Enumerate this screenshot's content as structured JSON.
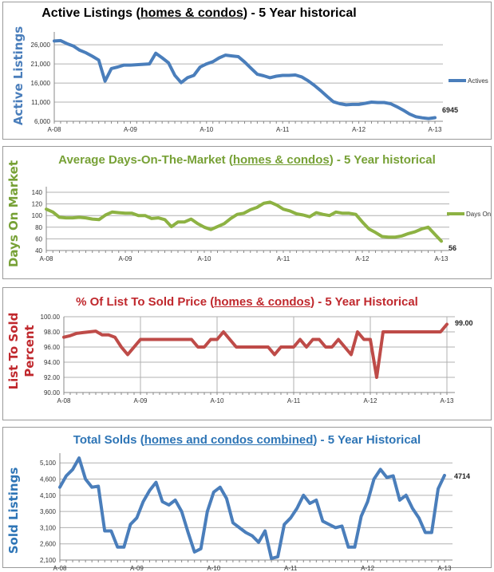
{
  "chart_data": [
    {
      "type": "line",
      "title": {
        "prefix": "Active Listings (",
        "underlined": "homes & condos",
        "suffix": ") - 5 Year historical"
      },
      "ylabel": [
        "Active Listings"
      ],
      "xticks": [
        "A-08",
        "A-09",
        "A-10",
        "A-11",
        "A-12",
        "A-13"
      ],
      "yticks": [
        "6,000",
        "11,000",
        "16,000",
        "21,000",
        "26,000"
      ],
      "ytick_values": [
        6000,
        11000,
        16000,
        21000,
        26000
      ],
      "ylim": [
        6000,
        30000
      ],
      "grid": "horizontal",
      "legend": "right",
      "color": "#4a7ebb",
      "title_color": "#000000",
      "end_label": "6945",
      "series": [
        {
          "name": "Actives",
          "values": [
            27000,
            27100,
            26300,
            25700,
            24600,
            23900,
            23000,
            22000,
            16500,
            19800,
            20200,
            20700,
            20700,
            20800,
            20900,
            21000,
            23800,
            22600,
            21300,
            18000,
            16100,
            17400,
            18000,
            20200,
            21000,
            21600,
            22600,
            23300,
            23100,
            22900,
            21500,
            19900,
            18300,
            17900,
            17400,
            17800,
            18000,
            18000,
            18100,
            17600,
            16600,
            15400,
            14000,
            12500,
            11100,
            10600,
            10300,
            10400,
            10400,
            10700,
            11000,
            10900,
            10900,
            10600,
            9800,
            8900,
            7900,
            7200,
            6900,
            6700,
            6945
          ]
        }
      ]
    },
    {
      "type": "line",
      "title": {
        "prefix": "Average Days-On-The-Market (",
        "underlined": "homes & condos",
        "suffix": ") - 5 Year historical"
      },
      "ylabel": [
        "Days On Market"
      ],
      "xticks": [
        "A-08",
        "A-09",
        "A-10",
        "A-11",
        "A-12",
        "A-13"
      ],
      "yticks": [
        "40",
        "60",
        "80",
        "100",
        "120",
        "140"
      ],
      "ytick_values": [
        40,
        60,
        80,
        100,
        120,
        140
      ],
      "ylim": [
        40,
        140
      ],
      "grid": "horizontal",
      "legend": "right",
      "color": "#8db243",
      "title_color": "#77a136",
      "end_label": "56",
      "series": [
        {
          "name": "Days On",
          "values": [
            111,
            106,
            97,
            96,
            96,
            97,
            96,
            94,
            93,
            101,
            106,
            105,
            104,
            104,
            100,
            100,
            95,
            96,
            93,
            81,
            89,
            89,
            94,
            86,
            80,
            76,
            81,
            86,
            95,
            102,
            104,
            110,
            114,
            121,
            123,
            118,
            111,
            108,
            103,
            101,
            98,
            105,
            102,
            100,
            106,
            104,
            104,
            102,
            89,
            77,
            71,
            64,
            63,
            63,
            65,
            69,
            72,
            77,
            80,
            68,
            56
          ]
        }
      ]
    },
    {
      "type": "line",
      "title": {
        "prefix": "% Of List To Sold Price (",
        "underlined": "homes & condos",
        "suffix": ") - 5 Year Historical"
      },
      "ylabel": [
        "List To Sold",
        "Percent"
      ],
      "xticks": [
        "A-08",
        "A-09",
        "A-10",
        "A-11",
        "A-12",
        "A-13"
      ],
      "yticks": [
        "90.00",
        "92.00",
        "94.00",
        "96.00",
        "98.00",
        "100.00"
      ],
      "ytick_values": [
        90,
        92,
        94,
        96,
        98,
        100
      ],
      "ylim": [
        90,
        100
      ],
      "grid": "both",
      "legend": "none",
      "color": "#be4b48",
      "title_color": "#c0282d",
      "end_label": "99.00",
      "series": [
        {
          "values": [
            97.3,
            97.5,
            97.8,
            97.9,
            98.0,
            98.1,
            97.6,
            97.6,
            97.3,
            96,
            95,
            96,
            97,
            97,
            97,
            97,
            97,
            97,
            97,
            97,
            97,
            96,
            96,
            97,
            97,
            98,
            97,
            96,
            96,
            96,
            96,
            96,
            96,
            95,
            96,
            96,
            96,
            97,
            96,
            97,
            97,
            96,
            96,
            97,
            96,
            95,
            98,
            97,
            97,
            92,
            98,
            98,
            98,
            98,
            98,
            98,
            98,
            98,
            98,
            98,
            99
          ]
        }
      ]
    },
    {
      "type": "line",
      "title": {
        "prefix": "Total Solds (",
        "underlined": "homes and condos combined",
        "suffix": ") - 5 Year Historical"
      },
      "ylabel": [
        "Sold Listings"
      ],
      "xticks": [
        "A-08",
        "A-09",
        "A-10",
        "A-11",
        "A-12",
        "A-13"
      ],
      "yticks": [
        "2,100",
        "2,600",
        "3,100",
        "3,600",
        "4,100",
        "4,600",
        "5,100"
      ],
      "ytick_values": [
        2100,
        2600,
        3100,
        3600,
        4100,
        4600,
        5100
      ],
      "ylim": [
        2100,
        5500
      ],
      "grid": "horizontal",
      "legend": "none",
      "color": "#4a7ebb",
      "title_color": "#2e75b6",
      "end_label": "4714",
      "series": [
        {
          "values": [
            4350,
            4700,
            4900,
            5250,
            4600,
            4350,
            4380,
            3000,
            3000,
            2500,
            2500,
            3200,
            3400,
            3900,
            4250,
            4500,
            3900,
            3800,
            3950,
            3600,
            2950,
            2350,
            2450,
            3600,
            4200,
            4350,
            4000,
            3250,
            3100,
            2950,
            2850,
            2650,
            3000,
            2150,
            2200,
            3200,
            3400,
            3700,
            4100,
            3850,
            3950,
            3300,
            3200,
            3100,
            3150,
            2500,
            2500,
            3450,
            3900,
            4600,
            4900,
            4650,
            4700,
            3950,
            4100,
            3700,
            3400,
            2950,
            2950,
            4300,
            4714
          ]
        }
      ]
    }
  ]
}
